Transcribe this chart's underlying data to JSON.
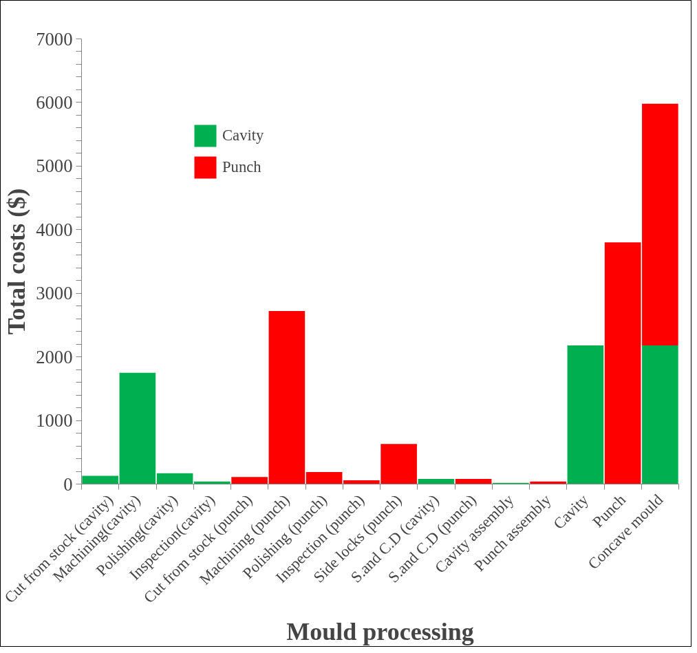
{
  "chart_data": {
    "type": "bar",
    "stacked": true,
    "xlabel": "Mould processing",
    "ylabel": "Total costs ($)",
    "categories": [
      "Cut from stock (cavity)",
      "Machining(cavity)",
      "Polishing(cavity)",
      "Inspection(cavity)",
      "Cut from stock (punch)",
      "Machining (punch)",
      "Polishing (punch)",
      "Inspection (punch)",
      "Side locks (punch)",
      "S.and C.D (cavity)",
      "S.and C.D (punch)",
      "Cavity assembly",
      "Punch assembly",
      "Cavity",
      "Punch",
      "Concave mould"
    ],
    "series": [
      {
        "name": "Cavity",
        "color": "#00b050",
        "values": [
          130,
          1750,
          170,
          40,
          null,
          null,
          null,
          null,
          null,
          80,
          null,
          20,
          null,
          2180,
          null,
          2180
        ]
      },
      {
        "name": "Punch",
        "color": "#ff0000",
        "values": [
          null,
          null,
          null,
          null,
          110,
          2720,
          190,
          60,
          630,
          null,
          80,
          null,
          40,
          null,
          3800,
          3800
        ]
      }
    ],
    "ylim": [
      0,
      7000
    ],
    "yticks": [
      0,
      {
        "value": 200,
        "label": null
      },
      {
        "value": 400,
        "label": null
      },
      {
        "value": 600,
        "label": null
      },
      {
        "value": 800,
        "label": null
      },
      1000,
      {
        "value": 1200,
        "label": null
      },
      {
        "value": 1400,
        "label": null
      },
      {
        "value": 1600,
        "label": null
      },
      {
        "value": 1800,
        "label": null
      },
      2000,
      {
        "value": 2200,
        "label": null
      },
      {
        "value": 2400,
        "label": null
      },
      {
        "value": 2600,
        "label": null
      },
      {
        "value": 2800,
        "label": null
      },
      3000,
      {
        "value": 3200,
        "label": null
      },
      {
        "value": 3400,
        "label": null
      },
      {
        "value": 3600,
        "label": null
      },
      {
        "value": 3800,
        "label": null
      },
      4000,
      {
        "value": 4200,
        "label": null
      },
      {
        "value": 4400,
        "label": null
      },
      {
        "value": 4600,
        "label": null
      },
      {
        "value": 4800,
        "label": null
      },
      5000,
      {
        "value": 5200,
        "label": null
      },
      {
        "value": 5400,
        "label": null
      },
      {
        "value": 5600,
        "label": null
      },
      {
        "value": 5800,
        "label": null
      },
      6000,
      {
        "value": 6200,
        "label": null
      },
      {
        "value": 6400,
        "label": null
      },
      {
        "value": 6600,
        "label": null
      },
      {
        "value": 6800,
        "label": null
      },
      7000
    ],
    "grid": false,
    "legend": "top left"
  }
}
